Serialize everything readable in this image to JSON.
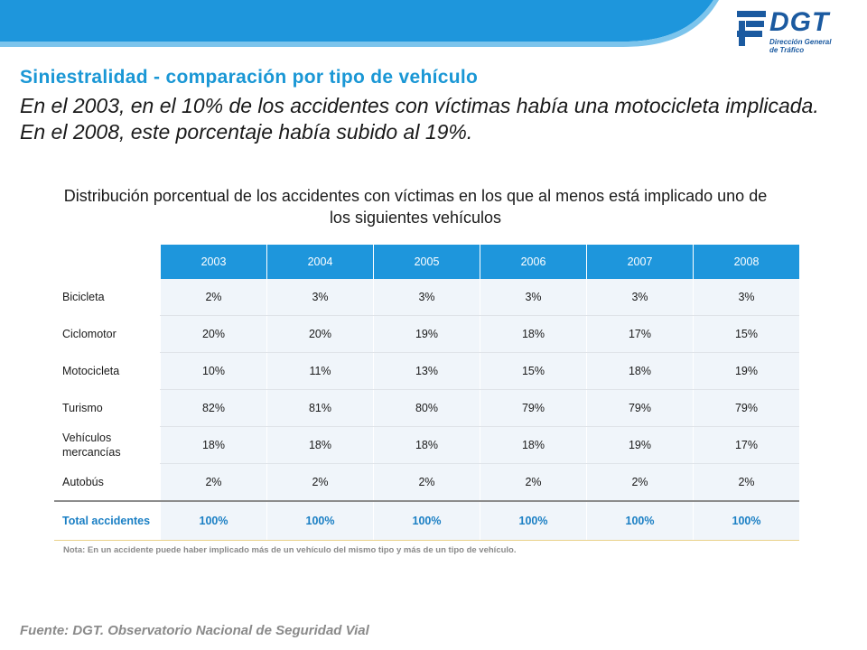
{
  "logo": {
    "name": "DGT",
    "subtitle_line1": "Dirección General",
    "subtitle_line2": "de Tráfico"
  },
  "title": "Siniestralidad - comparación por tipo de vehículo",
  "subtitle": "En el 2003, en el 10% de los accidentes con víctimas había una motocicleta implicada. En el 2008, este porcentaje había subido al 19%.",
  "table_caption": "Distribución porcentual de los accidentes con víctimas en los que al menos está implicado uno de los siguientes vehículos",
  "table": {
    "headers": [
      "2003",
      "2004",
      "2005",
      "2006",
      "2007",
      "2008"
    ],
    "rows": [
      {
        "label": "Bicicleta",
        "values": [
          "2%",
          "3%",
          "3%",
          "3%",
          "3%",
          "3%"
        ]
      },
      {
        "label": "Ciclomotor",
        "values": [
          "20%",
          "20%",
          "19%",
          "18%",
          "17%",
          "15%"
        ]
      },
      {
        "label": "Motocicleta",
        "values": [
          "10%",
          "11%",
          "13%",
          "15%",
          "18%",
          "19%"
        ]
      },
      {
        "label": "Turismo",
        "values": [
          "82%",
          "81%",
          "80%",
          "79%",
          "79%",
          "79%"
        ]
      },
      {
        "label": "Vehículos mercancías",
        "values": [
          "18%",
          "18%",
          "18%",
          "18%",
          "19%",
          "17%"
        ]
      },
      {
        "label": "Autobús",
        "values": [
          "2%",
          "2%",
          "2%",
          "2%",
          "2%",
          "2%"
        ]
      }
    ],
    "total": {
      "label": "Total accidentes",
      "values": [
        "100%",
        "100%",
        "100%",
        "100%",
        "100%",
        "100%"
      ]
    }
  },
  "note": "Nota: En un accidente puede haber implicado más de un vehículo del mismo tipo y más de un tipo de vehículo.",
  "source": "Fuente: DGT. Observatorio Nacional de Seguridad Vial",
  "colors": {
    "accent": "#1e96dc",
    "title": "#1a97d5",
    "logo": "#1b5aa0"
  }
}
